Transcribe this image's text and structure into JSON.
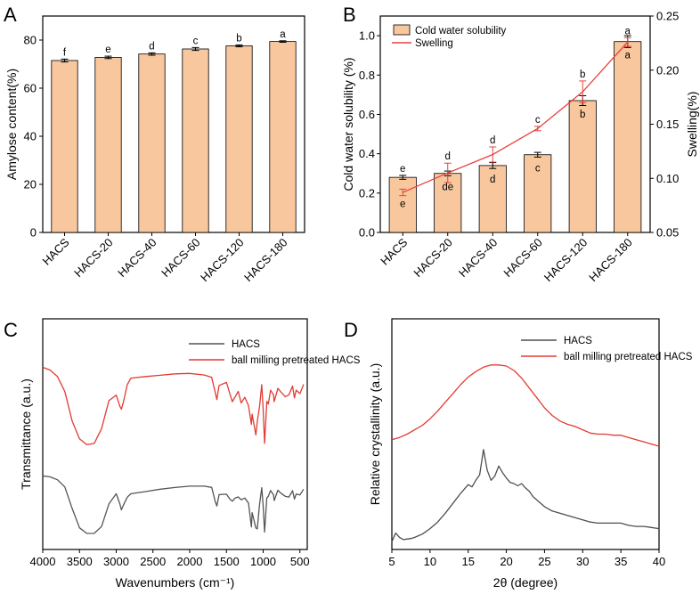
{
  "colors": {
    "bar_fill": "#f8c79e",
    "bar_stroke": "#000000",
    "red": "#e8413c",
    "gray": "#555555",
    "ftir_red": "#e23b33",
    "xrd_gray": "#4f4f4f"
  },
  "chart_data": [
    {
      "panel": "A",
      "type": "bar",
      "categories": [
        "HACS",
        "HACS-20",
        "HACS-40",
        "HACS-60",
        "HACS-120",
        "HACS-180"
      ],
      "values": [
        71.5,
        72.8,
        74.2,
        76.3,
        77.6,
        79.4
      ],
      "errors": [
        0.6,
        0.5,
        0.5,
        0.6,
        0.4,
        0.3
      ],
      "sig_letters": [
        "f",
        "e",
        "d",
        "c",
        "b",
        "a"
      ],
      "xlabel": "",
      "ylabel": "Amylose content(%)",
      "ylim": [
        0,
        90
      ],
      "yticks": [
        "0",
        "20",
        "40",
        "60",
        "80"
      ],
      "ytick_values": [
        0,
        20,
        40,
        60,
        80
      ]
    },
    {
      "panel": "B",
      "type": "bar",
      "categories": [
        "HACS",
        "HACS-20",
        "HACS-40",
        "HACS-60",
        "HACS-120",
        "HACS-180"
      ],
      "series": [
        {
          "name": "Cold water solubility",
          "kind": "bar",
          "axis": "left",
          "values": [
            0.28,
            0.3,
            0.34,
            0.395,
            0.67,
            0.97
          ],
          "errors": [
            0.01,
            0.012,
            0.015,
            0.012,
            0.025,
            0.03
          ],
          "sig_letters": [
            "e",
            "de",
            "d",
            "c",
            "b",
            "a"
          ]
        },
        {
          "name": "Swelling",
          "kind": "line",
          "axis": "right",
          "values": [
            0.087,
            0.105,
            0.122,
            0.146,
            0.18,
            0.226
          ],
          "errors": [
            0.003,
            0.009,
            0.007,
            0.002,
            0.01,
            0.004
          ],
          "sig_letters": [
            "e",
            "d",
            "d",
            "c",
            "b",
            "a"
          ]
        }
      ],
      "ylabel": "Cold water solubility (%)",
      "ylabel_right": "Swelling(%)",
      "ylim": [
        0,
        1.1
      ],
      "yticks": [
        "0.0",
        "0.2",
        "0.4",
        "0.6",
        "0.8",
        "1.0"
      ],
      "ytick_values": [
        0,
        0.2,
        0.4,
        0.6,
        0.8,
        1.0
      ],
      "ylim_right": [
        0.05,
        0.25
      ],
      "yticks_right": [
        "0.05",
        "0.10",
        "0.15",
        "0.20",
        "0.25"
      ],
      "ytick_values_right": [
        0.05,
        0.1,
        0.15,
        0.2,
        0.25
      ],
      "legend": [
        "Cold water solubility",
        "Swelling"
      ]
    },
    {
      "panel": "C",
      "type": "line",
      "title": "",
      "xlabel": "Wavenumbers (cm⁻¹)",
      "ylabel": "Transmittance (a.u.)",
      "xlim": [
        4000,
        400
      ],
      "xticks": [
        "4000",
        "3500",
        "3000",
        "2500",
        "2000",
        "1500",
        "1000",
        "500"
      ],
      "xtick_values": [
        4000,
        3500,
        3000,
        2500,
        2000,
        1500,
        1000,
        500
      ],
      "series": [
        {
          "name": "HACS",
          "x": [
            4000,
            3900,
            3800,
            3700,
            3600,
            3500,
            3400,
            3300,
            3200,
            3100,
            3000,
            2950,
            2930,
            2900,
            2850,
            2800,
            2600,
            2400,
            2200,
            2000,
            1800,
            1700,
            1650,
            1630,
            1600,
            1500,
            1450,
            1420,
            1380,
            1340,
            1300,
            1250,
            1200,
            1160,
            1150,
            1100,
            1080,
            1050,
            1020,
            1000,
            980,
            950,
            930,
            900,
            860,
            850,
            800,
            760,
            700,
            650,
            600,
            575,
            550,
            500,
            450
          ],
          "y": [
            75.8,
            74.4,
            70.7,
            61.3,
            33.4,
            8.2,
            0.8,
            1.0,
            9.8,
            39.2,
            52.5,
            39.2,
            31.6,
            38.3,
            48.0,
            52.5,
            55.3,
            58.4,
            60.6,
            62.3,
            62.4,
            60.7,
            41.4,
            36.5,
            51.3,
            51.9,
            45.2,
            42.8,
            47.0,
            48.3,
            44.7,
            46.8,
            40.5,
            9.3,
            28.0,
            8.0,
            6.8,
            38.2,
            60.4,
            36.8,
            2.6,
            47.2,
            49.2,
            56.8,
            51.1,
            43.6,
            57.0,
            53.3,
            49.1,
            48.1,
            56.5,
            45.6,
            52.2,
            50.9,
            58.4
          ]
        },
        {
          "name": "ball milling pretreated HACS",
          "x": [
            4000,
            3900,
            3800,
            3700,
            3600,
            3500,
            3400,
            3300,
            3200,
            3100,
            3000,
            2950,
            2930,
            2900,
            2850,
            2800,
            2600,
            2400,
            2200,
            2000,
            1800,
            1700,
            1650,
            1630,
            1600,
            1500,
            1450,
            1420,
            1380,
            1340,
            1300,
            1250,
            1200,
            1160,
            1150,
            1100,
            1080,
            1050,
            1020,
            1000,
            980,
            950,
            930,
            900,
            860,
            850,
            800,
            760,
            700,
            650,
            600,
            575,
            550,
            500,
            450
          ],
          "y": [
            217.0,
            213.3,
            204.9,
            185.4,
            147.2,
            124.0,
            116.2,
            118.0,
            137.1,
            173.6,
            180.9,
            166.3,
            162.4,
            172.7,
            194.4,
            202.8,
            204.9,
            206.6,
            208.4,
            209.0,
            206.9,
            203.8,
            183.0,
            174.9,
            193.4,
            197.3,
            181.4,
            172.2,
            178.6,
            185.6,
            170.5,
            178.0,
            167.3,
            142.7,
            156.1,
            129.0,
            146.5,
            165.7,
            194.4,
            162.1,
            118.1,
            172.6,
            169.1,
            187.1,
            181.1,
            172.3,
            189.5,
            184.9,
            178.8,
            181.1,
            192.5,
            177.1,
            187.2,
            182.7,
            194.8
          ]
        }
      ],
      "legend": [
        "HACS",
        "ball milling pretreated HACS"
      ]
    },
    {
      "panel": "D",
      "type": "line",
      "title": "",
      "xlabel": "2θ (degree)",
      "ylabel": "Relative crystallinity (a.u.)",
      "xlim": [
        5,
        40
      ],
      "xticks": [
        "5",
        "10",
        "15",
        "20",
        "25",
        "30",
        "35",
        "40"
      ],
      "xtick_values": [
        5,
        10,
        15,
        20,
        25,
        30,
        35,
        40
      ],
      "series": [
        {
          "name": "HACS",
          "x": [
            5,
            5.5,
            6,
            6.5,
            7,
            7.5,
            8,
            9,
            10,
            11,
            12,
            13,
            14,
            14.5,
            15,
            15.5,
            16,
            16.5,
            17,
            17.5,
            18,
            18.5,
            19,
            19.5,
            20,
            20.5,
            21,
            21.5,
            22,
            22.5,
            23,
            23.5,
            24,
            25,
            26,
            27,
            28,
            29,
            30,
            31,
            32,
            33,
            34,
            35,
            36,
            37,
            38,
            39,
            40
          ],
          "y": [
            2,
            10,
            6,
            4,
            4.5,
            5,
            6,
            9,
            14,
            20,
            28,
            37,
            46,
            50,
            54,
            52,
            58,
            63,
            86,
            67,
            58,
            62,
            71,
            65,
            60,
            56,
            55,
            53,
            55,
            51,
            48,
            43,
            40,
            34,
            30,
            28,
            26,
            24,
            22,
            20,
            19,
            19,
            19,
            19,
            17,
            16,
            16,
            15,
            14
          ]
        },
        {
          "name": "ball milling pretreated HACS",
          "x": [
            5,
            6,
            7,
            8,
            9,
            10,
            11,
            12,
            13,
            14,
            15,
            16,
            17,
            18,
            19,
            20,
            21,
            22,
            23,
            24,
            25,
            26,
            27,
            28,
            29,
            30,
            31,
            32,
            33,
            34,
            35,
            36,
            37,
            38,
            39,
            40
          ],
          "y": [
            95,
            97,
            100,
            104,
            108,
            114,
            121,
            129,
            137,
            145,
            152,
            157,
            161,
            163,
            163,
            162,
            158,
            151,
            142,
            133,
            124,
            117,
            112,
            109,
            107,
            104,
            101,
            100,
            100,
            99,
            99,
            97,
            95,
            93,
            91,
            89
          ]
        }
      ],
      "legend": [
        "HACS",
        "ball milling pretreated HACS"
      ]
    }
  ],
  "panels": [
    "A",
    "B",
    "C",
    "D"
  ]
}
